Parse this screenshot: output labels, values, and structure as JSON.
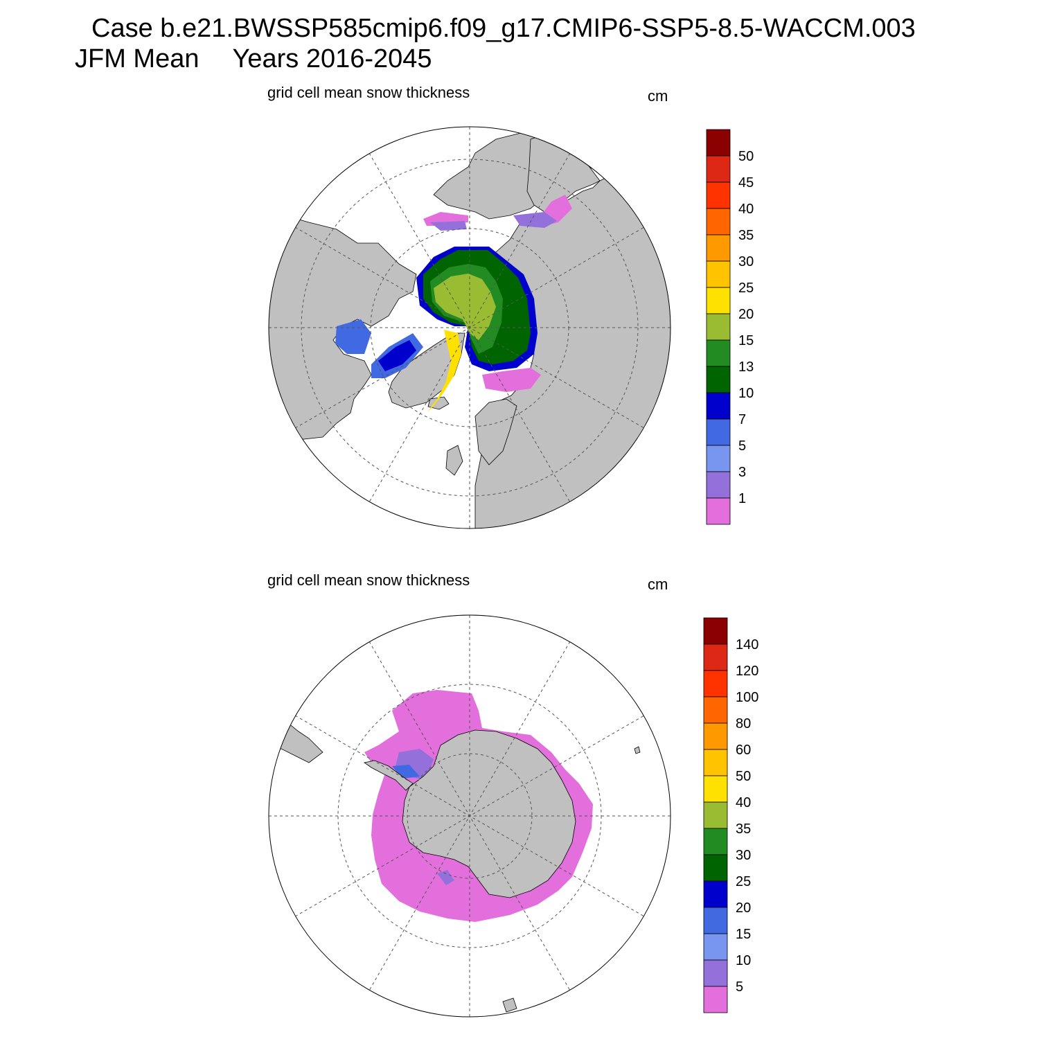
{
  "header": {
    "case_line": "Case b.e21.BWSSP585cmip6.f09_g17.CMIP6-SSP5-8.5-WACCM.003",
    "season": "JFM Mean",
    "years": "Years 2016-2045"
  },
  "panels": [
    {
      "hemisphere": "north",
      "title": "grid cell mean snow thickness",
      "units": "cm",
      "colorbar": {
        "levels": [
          "1",
          "3",
          "5",
          "7",
          "10",
          "13",
          "15",
          "20",
          "25",
          "30",
          "35",
          "40",
          "45",
          "50"
        ],
        "colors": [
          "#e36fdc",
          "#9470db",
          "#7896f0",
          "#4169e1",
          "#0000cd",
          "#006400",
          "#228b22",
          "#9abc32",
          "#ffe100",
          "#ffc300",
          "#ff9900",
          "#ff6600",
          "#ff3300",
          "#dc2814",
          "#8b0000"
        ]
      }
    },
    {
      "hemisphere": "south",
      "title": "grid cell mean snow thickness",
      "units": "cm",
      "colorbar": {
        "levels": [
          "5",
          "10",
          "15",
          "20",
          "25",
          "30",
          "35",
          "40",
          "50",
          "60",
          "80",
          "100",
          "120",
          "140"
        ],
        "colors": [
          "#e36fdc",
          "#9470db",
          "#7896f0",
          "#4169e1",
          "#0000cd",
          "#006400",
          "#228b22",
          "#9abc32",
          "#ffe100",
          "#ffc300",
          "#ff9900",
          "#ff6600",
          "#ff3300",
          "#dc2814",
          "#8b0000"
        ]
      }
    }
  ],
  "colors": {
    "land": "#c0c0c0",
    "ocean": "#ffffff",
    "outline": "#000000"
  }
}
